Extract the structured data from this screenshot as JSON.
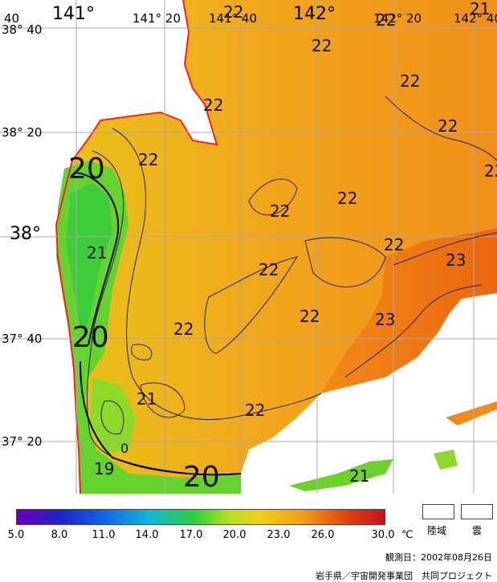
{
  "map": {
    "lon_labels": [
      "141°",
      "141° 20",
      "141° 40",
      "142°",
      "142° 20",
      "142° 40",
      "40"
    ],
    "lat_labels": [
      "38° 40",
      "38° 20",
      "38°",
      "37° 40",
      "37° 20"
    ],
    "isotherm_labels": [
      "20",
      "20",
      "20",
      "21",
      "21",
      "21",
      "21",
      "22",
      "22",
      "22",
      "22",
      "22",
      "22",
      "22",
      "22",
      "22",
      "22",
      "22",
      "22",
      "22",
      "22",
      "23",
      "23",
      "19",
      "0"
    ]
  },
  "colorbar": {
    "ticks": [
      "5.0",
      "8.0",
      "11.0",
      "14.0",
      "17.0",
      "20.0",
      "23.0",
      "26.0",
      "30.0"
    ],
    "unit": "℃"
  },
  "legend": {
    "land_label": "陸域",
    "cloud_label": "雲"
  },
  "footer": {
    "observation_date": "観測日：2002年08月26日",
    "credit": "岩手県／宇宙開発事業団　共同プロジェクト"
  },
  "colors": {
    "sea_warm": "#f2a51c",
    "sea_cool": "#5cd62a",
    "coast": "#ff2020",
    "grid": "#a8a8a8",
    "cloud": "#ffffff"
  }
}
